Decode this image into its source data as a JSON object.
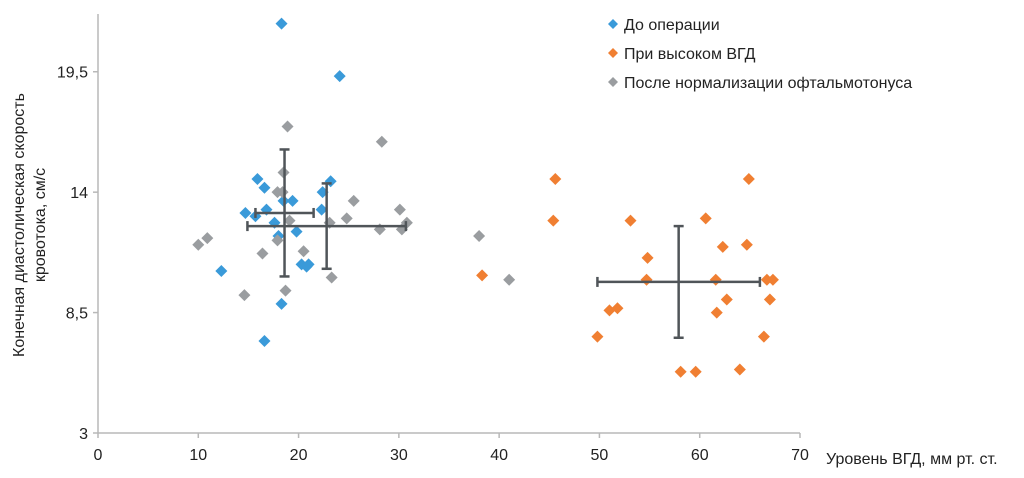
{
  "chart_data": {
    "type": "scatter",
    "title": "",
    "xlabel": "Уровень ВГД, мм рт. ст.",
    "ylabel": [
      "Конечная диастолическая скорость",
      "кровотока, см/с"
    ],
    "xlim": [
      0,
      70
    ],
    "ylim": [
      3,
      22
    ],
    "xticks": [
      0,
      10,
      20,
      30,
      40,
      50,
      60,
      70
    ],
    "xtick_labels": [
      "0",
      "10",
      "20",
      "30",
      "40",
      "50",
      "60",
      "70"
    ],
    "yticks": [
      3,
      8.5,
      14,
      19.5
    ],
    "ytick_labels": [
      "3",
      "8,5",
      "14",
      "19,5"
    ],
    "grid": false,
    "legend_position": "top-right",
    "series": [
      {
        "name": "До операции",
        "color": "#3a9ad9",
        "points": [
          [
            18.3,
            21.7
          ],
          [
            24.1,
            19.3
          ],
          [
            15.9,
            14.6
          ],
          [
            16.6,
            14.2
          ],
          [
            23.2,
            14.5
          ],
          [
            22.4,
            14.0
          ],
          [
            18.5,
            13.6
          ],
          [
            19.4,
            13.6
          ],
          [
            16.8,
            13.2
          ],
          [
            22.3,
            13.2
          ],
          [
            14.7,
            13.05
          ],
          [
            15.7,
            12.9
          ],
          [
            17.6,
            12.6
          ],
          [
            19.8,
            12.2
          ],
          [
            18.0,
            12.0
          ],
          [
            20.3,
            10.7
          ],
          [
            21.0,
            10.7
          ],
          [
            20.8,
            10.6
          ],
          [
            12.3,
            10.4
          ],
          [
            18.3,
            8.9
          ],
          [
            16.6,
            7.2
          ]
        ],
        "mean": [
          18.6,
          13.05
        ],
        "x_error": 2.9,
        "y_error": 2.9
      },
      {
        "name": "При высоком ВГД",
        "color": "#f07f32",
        "points": [
          [
            45.6,
            14.6
          ],
          [
            45.4,
            12.7
          ],
          [
            38.3,
            10.2
          ],
          [
            53.1,
            12.7
          ],
          [
            60.6,
            12.8
          ],
          [
            64.9,
            14.6
          ],
          [
            62.3,
            11.5
          ],
          [
            64.7,
            11.6
          ],
          [
            54.8,
            11.0
          ],
          [
            54.7,
            10.0
          ],
          [
            61.6,
            10.0
          ],
          [
            66.7,
            10.0
          ],
          [
            67.3,
            10.0
          ],
          [
            62.7,
            9.1
          ],
          [
            67.0,
            9.1
          ],
          [
            61.7,
            8.5
          ],
          [
            51.0,
            8.6
          ],
          [
            51.8,
            8.7
          ],
          [
            49.8,
            7.4
          ],
          [
            66.4,
            7.4
          ],
          [
            58.1,
            5.8
          ],
          [
            59.6,
            5.8
          ],
          [
            64.0,
            5.9
          ]
        ],
        "mean": [
          57.9,
          9.9
        ],
        "x_error": 8.1,
        "y_error": 2.55
      },
      {
        "name": "После нормализации офтальмотонуса",
        "color": "#9a9da0",
        "points": [
          [
            18.9,
            17.0
          ],
          [
            28.3,
            16.3
          ],
          [
            18.5,
            14.9
          ],
          [
            17.9,
            14.0
          ],
          [
            18.4,
            14.0
          ],
          [
            25.5,
            13.6
          ],
          [
            30.1,
            13.2
          ],
          [
            19.1,
            12.7
          ],
          [
            24.8,
            12.8
          ],
          [
            23.1,
            12.6
          ],
          [
            30.8,
            12.6
          ],
          [
            28.1,
            12.3
          ],
          [
            30.3,
            12.3
          ],
          [
            10.9,
            11.9
          ],
          [
            10.0,
            11.6
          ],
          [
            17.9,
            11.8
          ],
          [
            16.4,
            11.2
          ],
          [
            20.5,
            11.3
          ],
          [
            23.3,
            10.1
          ],
          [
            18.7,
            9.5
          ],
          [
            14.6,
            9.3
          ],
          [
            38.0,
            12.0
          ],
          [
            41.0,
            10.0
          ]
        ],
        "mean": [
          22.8,
          12.45
        ],
        "x_error": 7.9,
        "y_error": 1.95
      }
    ]
  }
}
